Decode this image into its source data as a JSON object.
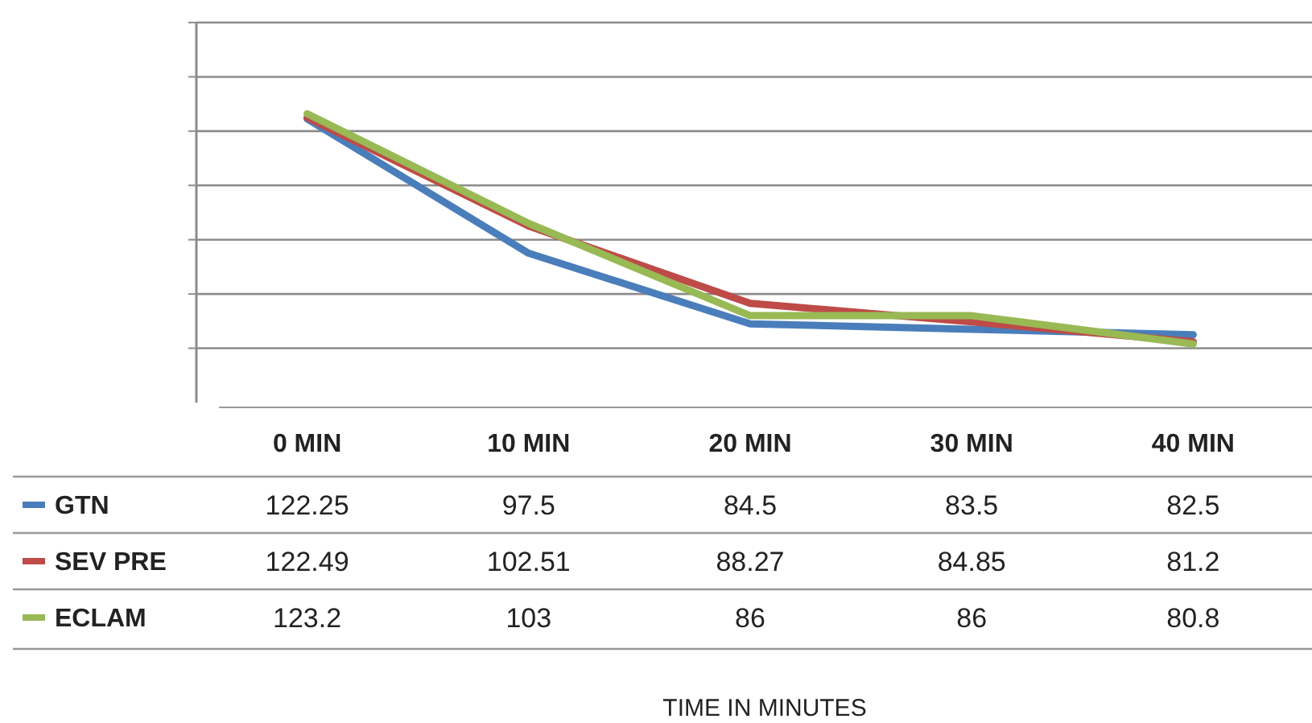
{
  "chart_data": {
    "type": "line",
    "annotations": [
      "TIME IN MINUTES"
    ],
    "categories": [
      "0 MIN",
      "10 MIN",
      "20 MIN",
      "30 MIN",
      "40 MIN"
    ],
    "series": [
      {
        "name": "GTN",
        "color": "#4a7ebb",
        "values": [
          122.25,
          97.5,
          84.5,
          83.5,
          82.5
        ]
      },
      {
        "name": "SEV PRE",
        "color": "#be4b48",
        "values": [
          122.49,
          102.51,
          88.27,
          84.85,
          81.2
        ]
      },
      {
        "name": "ECLAM",
        "color": "#98b954",
        "values": [
          123.2,
          103,
          86,
          86,
          80.8
        ]
      }
    ],
    "ylim": [
      70,
      140
    ],
    "yticks": [
      {
        "value": 80,
        "label": null
      },
      {
        "value": 90,
        "label": null
      },
      {
        "value": 100,
        "label": null
      },
      {
        "value": 110,
        "label": null
      },
      {
        "value": 120,
        "label": null
      },
      {
        "value": 130,
        "label": null
      },
      {
        "value": 140,
        "label": null
      }
    ],
    "grid": "y",
    "tick_labels": "x",
    "data_labels": true,
    "legend": "bottom",
    "marker": "none",
    "line_style": "solid"
  }
}
